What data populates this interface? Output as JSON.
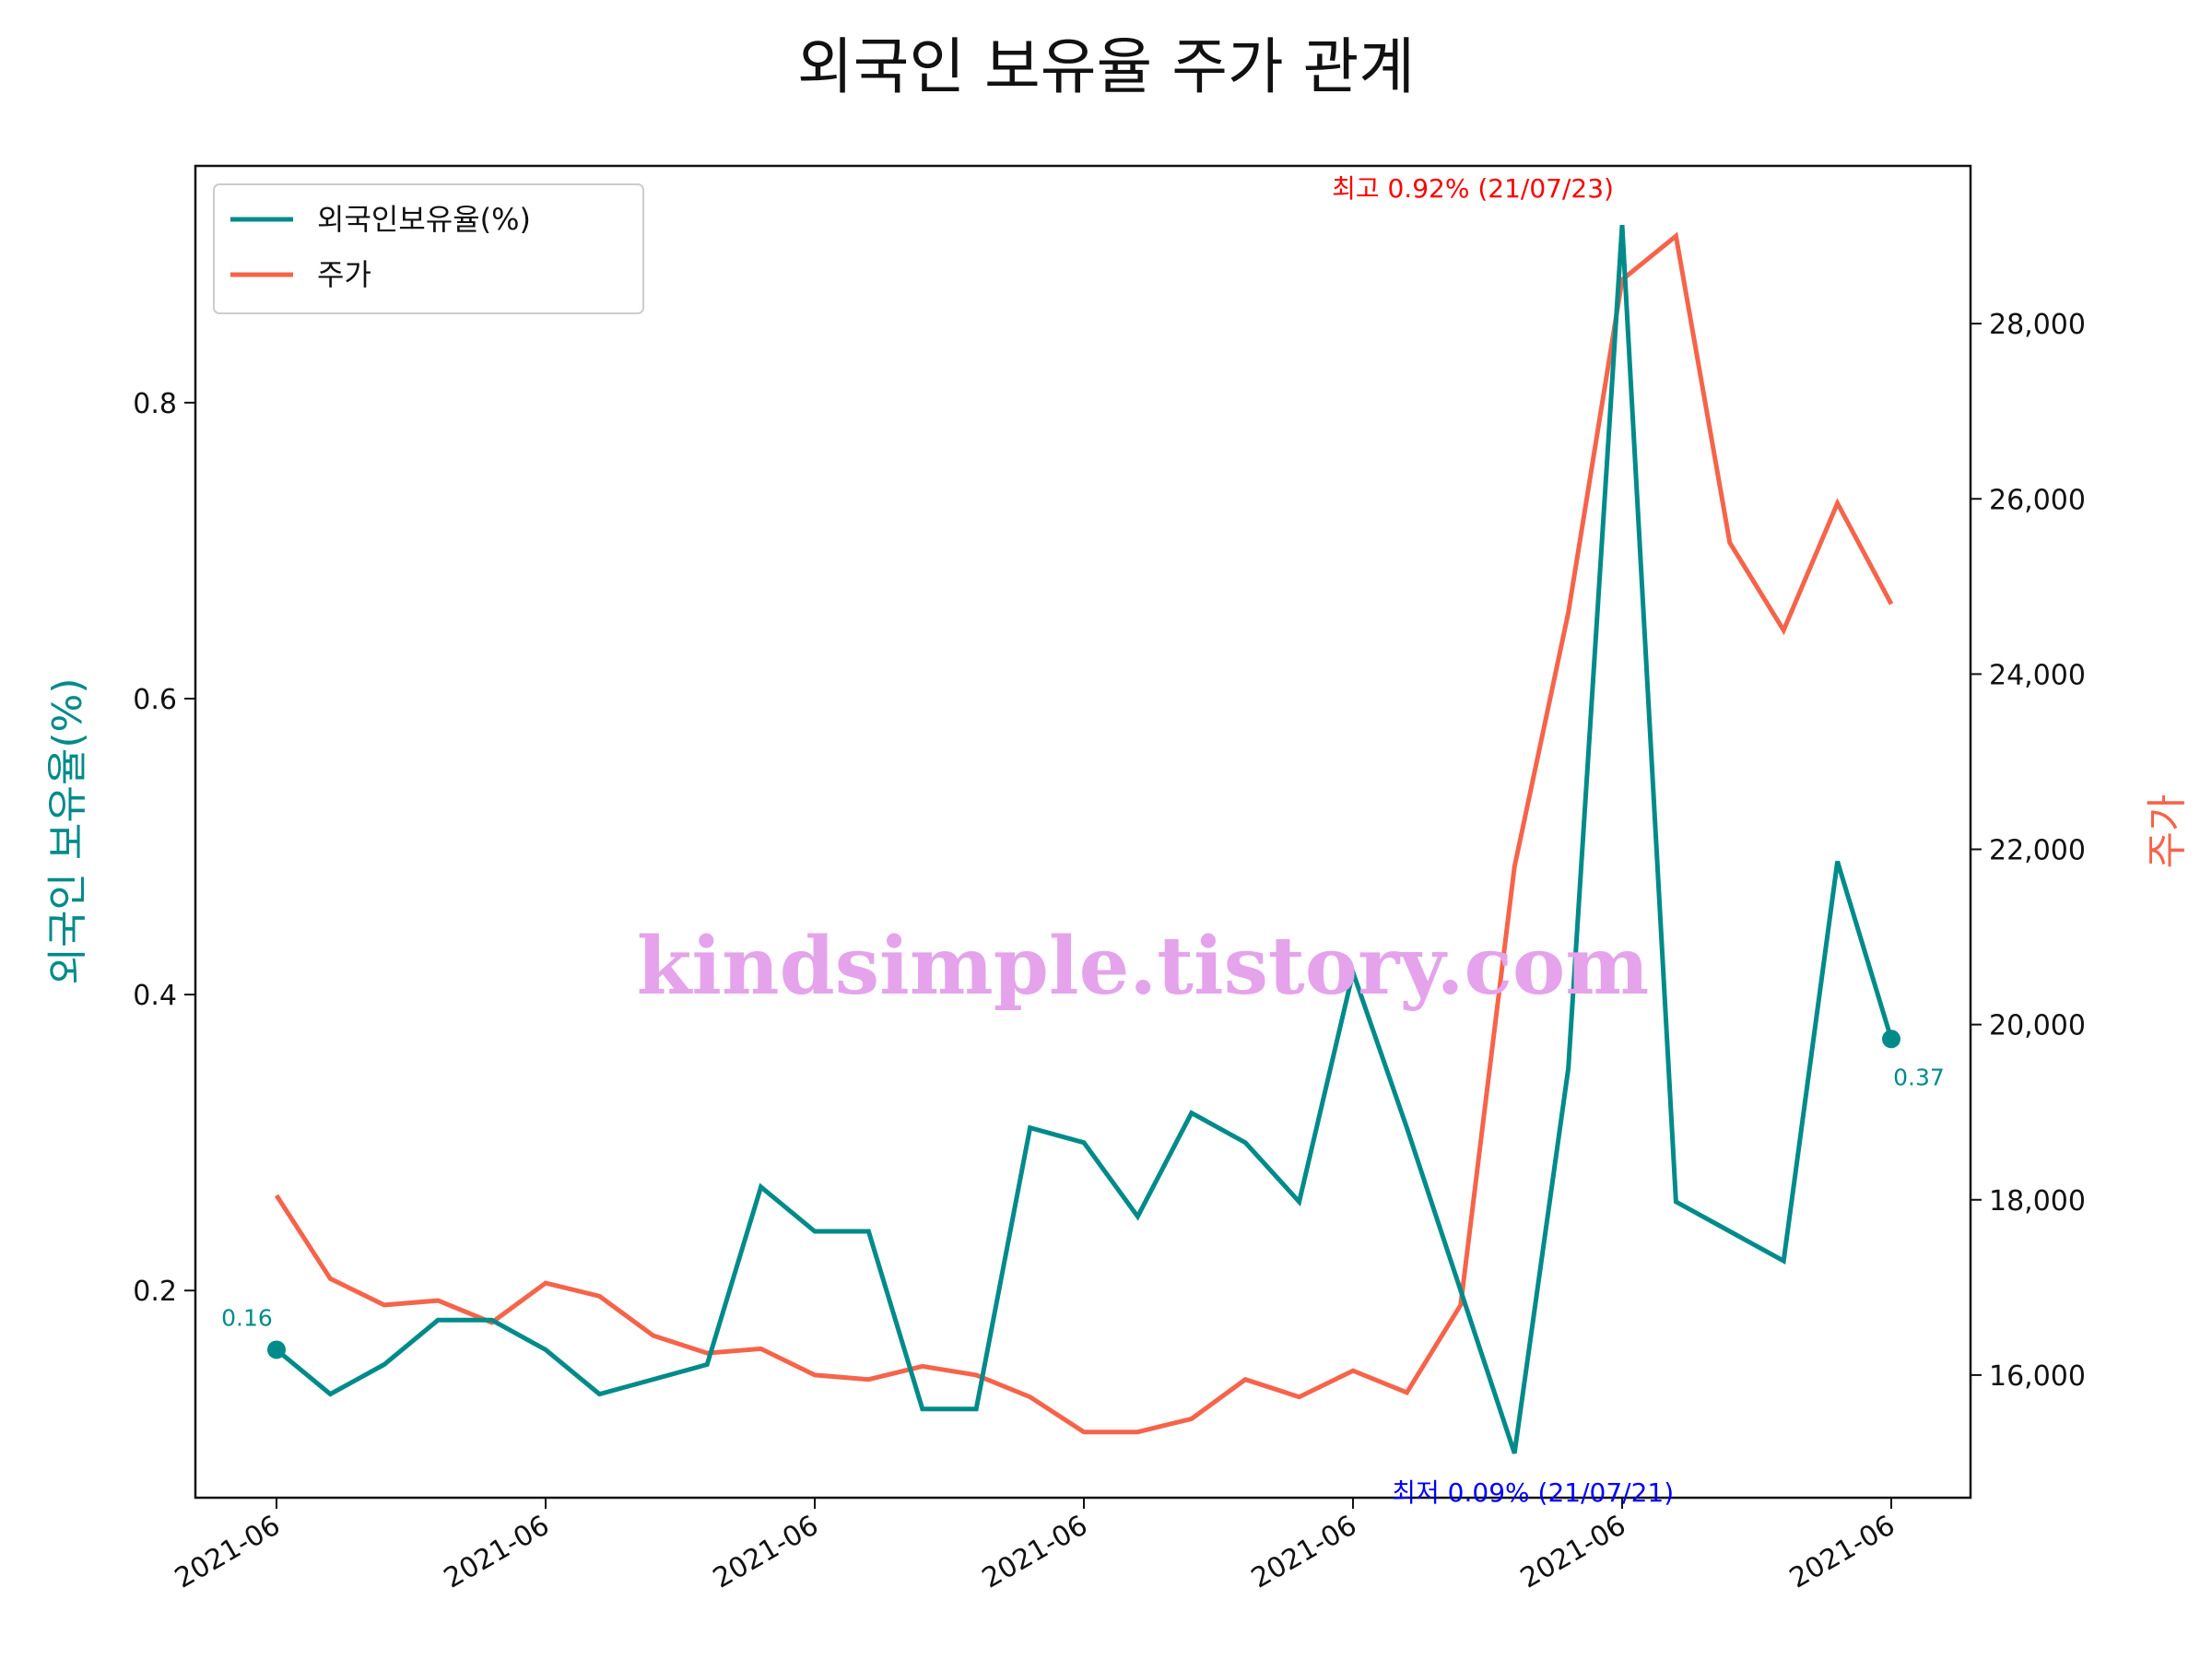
{
  "chart_data": {
    "type": "line",
    "title": "외국인 보유율 주가 관계",
    "ylabel": "외국인 보유율(%)",
    "y2label": "주가",
    "x": [
      "2021-06",
      "",
      "",
      "",
      "",
      "2021-06",
      "",
      "",
      "",
      "",
      "2021-06",
      "",
      "",
      "",
      "",
      "2021-06",
      "",
      "",
      "",
      "",
      "2021-06",
      "",
      "",
      "",
      "",
      "2021-06",
      "",
      "",
      "",
      "",
      "2021-06"
    ],
    "x_tick_labels": [
      "2021-06",
      "2021-06",
      "2021-06",
      "2021-06",
      "2021-06",
      "2021-06",
      "2021-06"
    ],
    "x_tick_indices": [
      0,
      5,
      10,
      15,
      20,
      25,
      30
    ],
    "ylim": [
      0.06,
      0.96
    ],
    "y_ticks": [
      0.2,
      0.4,
      0.6,
      0.8
    ],
    "y_tick_labels": [
      "0.2",
      "0.4",
      "0.6",
      "0.8"
    ],
    "y2lim": [
      14600,
      29800
    ],
    "y2_ticks": [
      16000,
      18000,
      20000,
      22000,
      24000,
      26000,
      28000
    ],
    "y2_tick_labels": [
      "16,000",
      "18,000",
      "20,000",
      "22,000",
      "24,000",
      "26,000",
      "28,000"
    ],
    "legend_position": "upper-left",
    "grid": false,
    "series": [
      {
        "name": "외국인보유율(%)",
        "axis": "left",
        "color": "#008b8a",
        "values": [
          0.16,
          0.13,
          0.15,
          0.18,
          0.18,
          0.16,
          0.13,
          0.14,
          0.15,
          0.27,
          0.24,
          0.24,
          0.12,
          0.12,
          0.31,
          0.3,
          0.25,
          0.32,
          0.3,
          0.26,
          0.415,
          0.31,
          0.2,
          0.09,
          0.35,
          0.92,
          0.26,
          0.24,
          0.22,
          0.49,
          0.37
        ]
      },
      {
        "name": "주가",
        "axis": "right",
        "color": "#f5644a",
        "values": [
          18050,
          17100,
          16800,
          16850,
          16600,
          17050,
          16900,
          16450,
          16250,
          16300,
          16000,
          15950,
          16100,
          16000,
          15750,
          15350,
          15350,
          15500,
          15950,
          15750,
          16050,
          15800,
          16800,
          21800,
          24700,
          28500,
          29000,
          25500,
          24500,
          25950,
          24800
        ]
      }
    ],
    "annotations": {
      "max": {
        "text": "최고 0.92% (21/07/23)",
        "index": 25,
        "color": "#ff0000"
      },
      "min": {
        "text": "최저 0.09% (21/07/21)",
        "index": 23,
        "color": "#0000ff"
      },
      "start_label": {
        "text": "0.16",
        "index": 0
      },
      "end_label": {
        "text": "0.37",
        "index": 30
      }
    },
    "watermark": "kindsimple.tistory.com"
  }
}
